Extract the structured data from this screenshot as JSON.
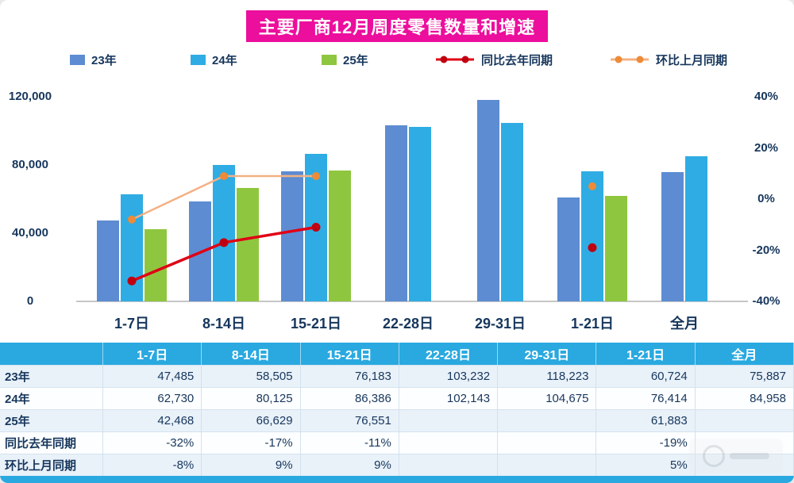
{
  "chart_data": {
    "type": "bar",
    "title": "主要厂商12月周度零售数量和增速",
    "categories": [
      "1-7日",
      "8-14日",
      "15-21日",
      "22-28日",
      "29-31日",
      "1-21日",
      "全月"
    ],
    "bar_series": [
      {
        "name": "23年",
        "color": "#5D8CD2",
        "values": [
          47485,
          58505,
          76183,
          103232,
          118223,
          60724,
          75887
        ]
      },
      {
        "name": "24年",
        "color": "#2FACE3",
        "values": [
          62730,
          80125,
          86386,
          102143,
          104675,
          76414,
          84958
        ]
      },
      {
        "name": "25年",
        "color": "#8FC63F",
        "values": [
          42468,
          66629,
          76551,
          null,
          null,
          61883,
          null
        ]
      }
    ],
    "line_series": [
      {
        "name": "同比去年同期",
        "color": "#E00014",
        "dot_color": "#C00010",
        "values": [
          -32,
          -17,
          -11,
          null,
          null,
          -19,
          null
        ]
      },
      {
        "name": "环比上月同期",
        "color": "#F4B183",
        "dot_color": "#ED8B38",
        "values": [
          -8,
          9,
          9,
          null,
          null,
          5,
          null
        ]
      }
    ],
    "left_axis": {
      "ticks": [
        "0",
        "40,000",
        "80,000",
        "120,000"
      ],
      "min": 0,
      "max": 120000
    },
    "right_axis": {
      "ticks": [
        "-40%",
        "-20%",
        "0%",
        "20%",
        "40%"
      ],
      "min": -40,
      "max": 40
    },
    "grid": false,
    "legend_position": "top"
  },
  "legend": {
    "items": [
      {
        "label": "23年",
        "marker": "square",
        "color": "#5D8CD2"
      },
      {
        "label": "24年",
        "marker": "square",
        "color": "#2FACE3"
      },
      {
        "label": "25年",
        "marker": "square",
        "color": "#8FC63F"
      },
      {
        "label": "同比去年同期",
        "marker": "line-dots",
        "color": "#E00014",
        "dot": "#C00010"
      },
      {
        "label": "环比上月同期",
        "marker": "line-dots",
        "color": "#F4B183",
        "dot": "#ED8B38"
      }
    ]
  },
  "table": {
    "header": [
      "",
      "1-7日",
      "8-14日",
      "15-21日",
      "22-28日",
      "29-31日",
      "1-21日",
      "全月"
    ],
    "rows": [
      {
        "label": "23年",
        "values": [
          "47,485",
          "58,505",
          "76,183",
          "103,232",
          "118,223",
          "60,724",
          "75,887"
        ]
      },
      {
        "label": "24年",
        "values": [
          "62,730",
          "80,125",
          "86,386",
          "102,143",
          "104,675",
          "76,414",
          "84,958"
        ]
      },
      {
        "label": "25年",
        "values": [
          "42,468",
          "66,629",
          "76,551",
          "",
          "",
          "61,883",
          ""
        ]
      },
      {
        "label": "同比去年同期",
        "values": [
          "-32%",
          "-17%",
          "-11%",
          "",
          "",
          "-19%",
          ""
        ]
      },
      {
        "label": "环比上月同期",
        "values": [
          "-8%",
          "9%",
          "9%",
          "",
          "",
          "5%",
          ""
        ]
      }
    ]
  },
  "colors": {
    "title_bg": "#EC0E9C",
    "header_bg": "#29A9E0",
    "text_navy": "#16365C",
    "row_alt": "#E9F1F9"
  }
}
